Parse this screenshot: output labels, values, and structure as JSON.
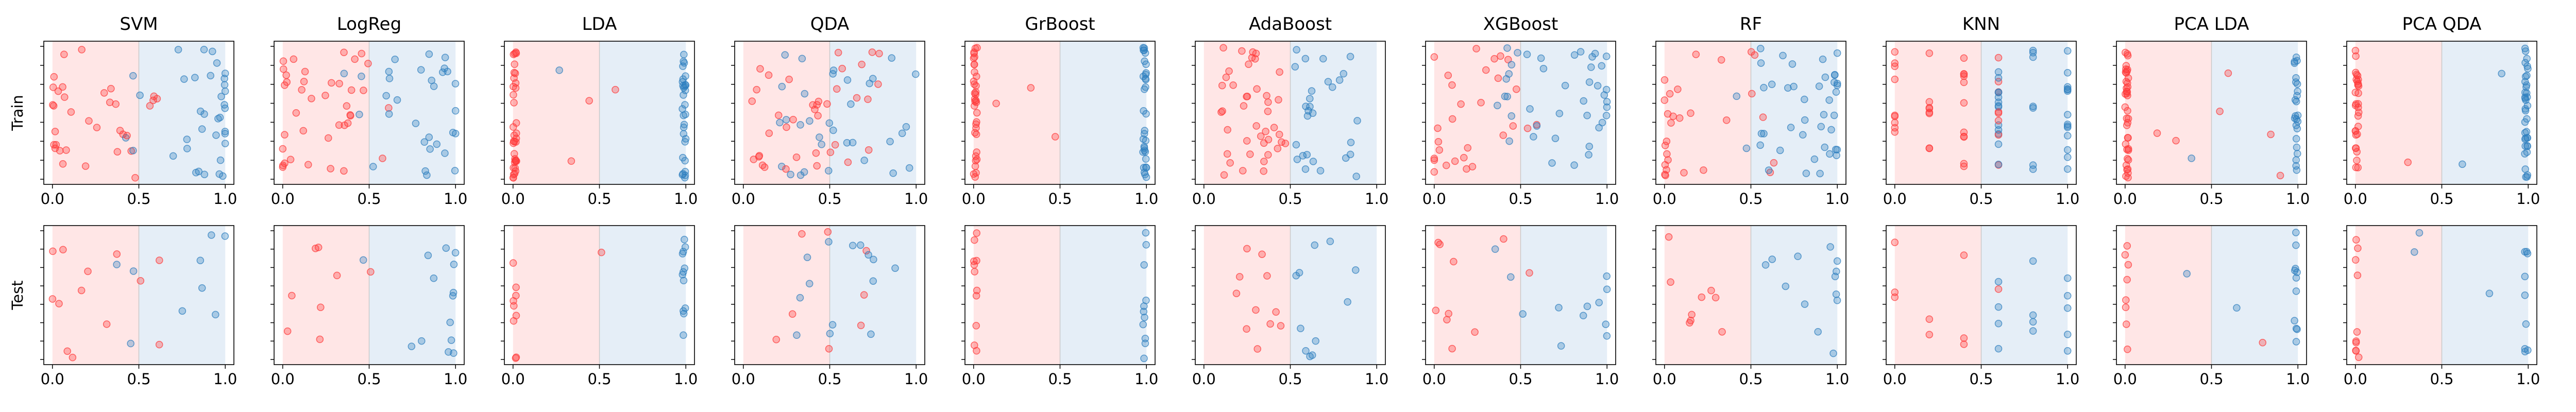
{
  "colors": {
    "class0": "#ff3b3b",
    "class1": "#2f7fbf",
    "region0": "#ffe6e6",
    "region1": "#e5eef7"
  },
  "chart_data": {
    "type": "scatter",
    "models": [
      "SVM",
      "LogReg",
      "LDA",
      "QDA",
      "GrBoost",
      "AdaBoost",
      "XGBoost",
      "RF",
      "KNN",
      "PCA LDA",
      "PCA QDA"
    ],
    "rows": [
      "Train",
      "Test"
    ],
    "x_ticks": [
      "0.0",
      "0.5",
      "1.0"
    ],
    "xlim": [
      -0.05,
      1.05
    ],
    "y_ticks": 8,
    "decision_threshold": 0.5,
    "grid": false
  }
}
